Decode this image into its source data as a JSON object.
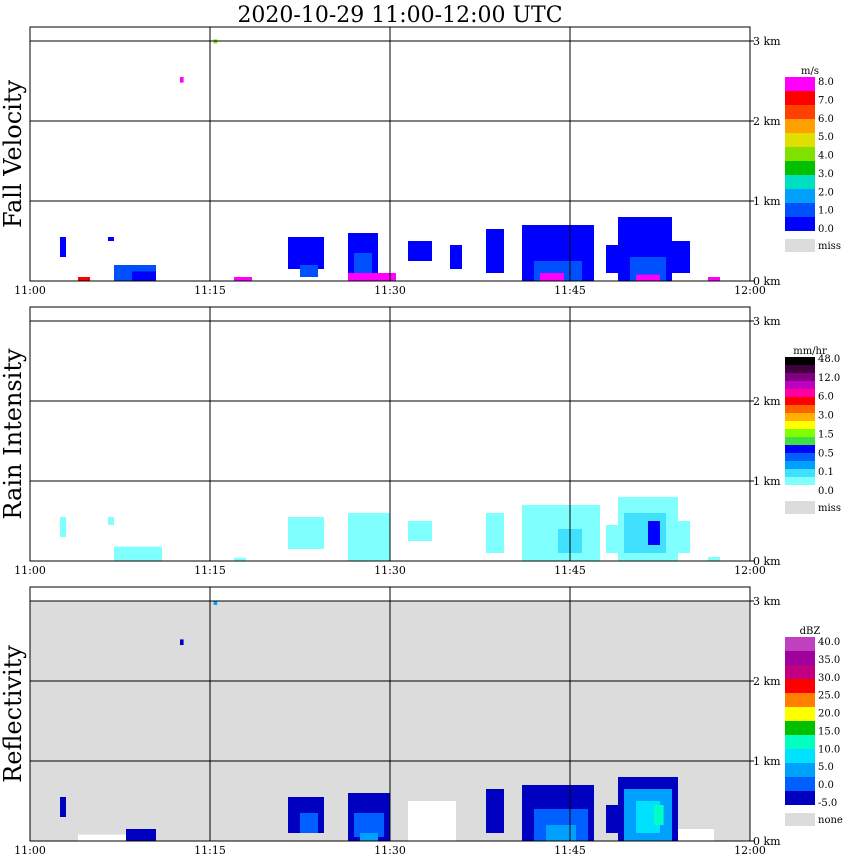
{
  "title": "2020-10-29   11:00-12:00 UTC",
  "colors": {
    "panel_bg_default": "#ffffff",
    "panel_bg_reflectivity": "#dcdcdc",
    "grid": "#000000",
    "miss": "#dcdcdc"
  },
  "chart_data": [
    {
      "type": "heatmap",
      "ylabel": "Fall Velocity",
      "x_ticks": [
        "11:00",
        "11:15",
        "11:30",
        "11:45",
        "12:00"
      ],
      "y_ticks": [
        "0 km",
        "1 km",
        "2 km",
        "3 km"
      ],
      "xlim_minutes": [
        0,
        60
      ],
      "ylim_km": [
        0,
        3
      ],
      "grid": true,
      "legend_position": "right",
      "colorbar": {
        "unit": "m/s",
        "colors": [
          "#0000ff",
          "#0050ff",
          "#00a0ff",
          "#00e0c0",
          "#00c000",
          "#80e000",
          "#e0e000",
          "#ffa000",
          "#ff4000",
          "#ff0000",
          "#ff00ff"
        ],
        "labels": [
          "0.0",
          "1.0",
          "2.0",
          "3.0",
          "4.0",
          "5.0",
          "6.0",
          "7.0",
          "8.0"
        ],
        "missing_label": "miss"
      },
      "echoes": [
        {
          "t0": 2.5,
          "t1": 3.0,
          "h0": 0.3,
          "h1": 0.55,
          "v": 0
        },
        {
          "t0": 4.0,
          "t1": 5.0,
          "h0": 0.0,
          "h1": 0.05,
          "v": 9
        },
        {
          "t0": 6.5,
          "t1": 7.0,
          "h0": 0.5,
          "h1": 0.55,
          "v": 0
        },
        {
          "t0": 7.0,
          "t1": 10.5,
          "h0": 0.0,
          "h1": 0.2,
          "v": 1
        },
        {
          "t0": 8.5,
          "t1": 10.5,
          "h0": 0.0,
          "h1": 0.12,
          "v": 0
        },
        {
          "t0": 12.5,
          "t1": 12.8,
          "h0": 2.48,
          "h1": 2.55,
          "v": 10
        },
        {
          "t0": 15.3,
          "t1": 15.6,
          "h0": 2.97,
          "h1": 3.02,
          "v": 5
        },
        {
          "t0": 17.0,
          "t1": 18.5,
          "h0": 0.0,
          "h1": 0.05,
          "v": 10
        },
        {
          "t0": 21.5,
          "t1": 24.5,
          "h0": 0.15,
          "h1": 0.55,
          "v": 0
        },
        {
          "t0": 22.5,
          "t1": 24.0,
          "h0": 0.05,
          "h1": 0.2,
          "v": 1
        },
        {
          "t0": 26.5,
          "t1": 29.0,
          "h0": 0.05,
          "h1": 0.6,
          "v": 0
        },
        {
          "t0": 26.5,
          "t1": 30.5,
          "h0": 0.0,
          "h1": 0.1,
          "v": 10
        },
        {
          "t0": 27.0,
          "t1": 28.5,
          "h0": 0.1,
          "h1": 0.35,
          "v": 1
        },
        {
          "t0": 31.5,
          "t1": 33.5,
          "h0": 0.25,
          "h1": 0.5,
          "v": 0
        },
        {
          "t0": 35.0,
          "t1": 36.0,
          "h0": 0.15,
          "h1": 0.45,
          "v": 0
        },
        {
          "t0": 38.0,
          "t1": 39.5,
          "h0": 0.1,
          "h1": 0.65,
          "v": 0
        },
        {
          "t0": 41.0,
          "t1": 47.0,
          "h0": 0.0,
          "h1": 0.7,
          "v": 0
        },
        {
          "t0": 42.0,
          "t1": 46.0,
          "h0": 0.0,
          "h1": 0.25,
          "v": 1
        },
        {
          "t0": 42.5,
          "t1": 44.5,
          "h0": 0.0,
          "h1": 0.1,
          "v": 10
        },
        {
          "t0": 48.0,
          "t1": 50.0,
          "h0": 0.1,
          "h1": 0.45,
          "v": 0
        },
        {
          "t0": 49.0,
          "t1": 53.5,
          "h0": 0.0,
          "h1": 0.8,
          "v": 0
        },
        {
          "t0": 50.0,
          "t1": 53.0,
          "h0": 0.0,
          "h1": 0.3,
          "v": 1
        },
        {
          "t0": 50.5,
          "t1": 52.5,
          "h0": 0.0,
          "h1": 0.08,
          "v": 10
        },
        {
          "t0": 53.5,
          "t1": 55.0,
          "h0": 0.1,
          "h1": 0.5,
          "v": 0
        },
        {
          "t0": 56.5,
          "t1": 57.5,
          "h0": 0.0,
          "h1": 0.05,
          "v": 10
        }
      ]
    },
    {
      "type": "heatmap",
      "ylabel": "Rain Intensity",
      "x_ticks": [
        "11:00",
        "11:15",
        "11:30",
        "11:45",
        "12:00"
      ],
      "y_ticks": [
        "0 km",
        "1 km",
        "2 km",
        "3 km"
      ],
      "xlim_minutes": [
        0,
        60
      ],
      "ylim_km": [
        0,
        3
      ],
      "grid": true,
      "legend_position": "right",
      "colorbar": {
        "unit": "mm/hr",
        "colors": [
          "#ffffff",
          "#80ffff",
          "#40e0ff",
          "#00a0ff",
          "#0060ff",
          "#0000ff",
          "#40e040",
          "#80ff00",
          "#ffff00",
          "#ffb000",
          "#ff6000",
          "#ff0000",
          "#ff00a0",
          "#c000c0",
          "#800080",
          "#400040",
          "#000000"
        ],
        "labels": [
          "0.0",
          "0.1",
          "0.5",
          "1.5",
          "3.0",
          "6.0",
          "12.0",
          "48.0"
        ],
        "missing_label": "miss"
      },
      "echoes": [
        {
          "t0": 2.5,
          "t1": 3.0,
          "h0": 0.3,
          "h1": 0.55,
          "v": 1
        },
        {
          "t0": 6.5,
          "t1": 7.0,
          "h0": 0.45,
          "h1": 0.55,
          "v": 1
        },
        {
          "t0": 7.0,
          "t1": 11.0,
          "h0": 0.0,
          "h1": 0.18,
          "v": 1
        },
        {
          "t0": 17.0,
          "t1": 18.0,
          "h0": 0.0,
          "h1": 0.04,
          "v": 1
        },
        {
          "t0": 21.5,
          "t1": 24.5,
          "h0": 0.15,
          "h1": 0.55,
          "v": 1
        },
        {
          "t0": 26.5,
          "t1": 30.0,
          "h0": 0.0,
          "h1": 0.6,
          "v": 1
        },
        {
          "t0": 31.5,
          "t1": 33.5,
          "h0": 0.25,
          "h1": 0.5,
          "v": 1
        },
        {
          "t0": 38.0,
          "t1": 39.5,
          "h0": 0.1,
          "h1": 0.6,
          "v": 1
        },
        {
          "t0": 41.0,
          "t1": 47.5,
          "h0": 0.0,
          "h1": 0.7,
          "v": 1
        },
        {
          "t0": 44.0,
          "t1": 46.0,
          "h0": 0.1,
          "h1": 0.4,
          "v": 2
        },
        {
          "t0": 48.0,
          "t1": 50.0,
          "h0": 0.1,
          "h1": 0.45,
          "v": 1
        },
        {
          "t0": 49.0,
          "t1": 54.0,
          "h0": 0.0,
          "h1": 0.8,
          "v": 1
        },
        {
          "t0": 49.5,
          "t1": 53.0,
          "h0": 0.1,
          "h1": 0.6,
          "v": 2
        },
        {
          "t0": 51.5,
          "t1": 52.5,
          "h0": 0.2,
          "h1": 0.5,
          "v": 5
        },
        {
          "t0": 53.5,
          "t1": 55.0,
          "h0": 0.1,
          "h1": 0.5,
          "v": 1
        },
        {
          "t0": 56.5,
          "t1": 57.5,
          "h0": 0.0,
          "h1": 0.05,
          "v": 1
        }
      ]
    },
    {
      "type": "heatmap",
      "ylabel": "Reflectivity",
      "x_ticks": [
        "11:00",
        "11:15",
        "11:30",
        "11:45",
        "12:00"
      ],
      "y_ticks": [
        "0 km",
        "1 km",
        "2 km",
        "3 km"
      ],
      "xlim_minutes": [
        0,
        60
      ],
      "ylim_km": [
        0,
        3
      ],
      "grid": true,
      "legend_position": "right",
      "colorbar": {
        "unit": "dBZ",
        "colors": [
          "#0000c0",
          "#0060ff",
          "#00a0ff",
          "#00e0ff",
          "#00ffc0",
          "#00c000",
          "#ffff00",
          "#ff8000",
          "#ff0000",
          "#c00080",
          "#a000a0",
          "#c040c0"
        ],
        "labels": [
          "-5.0",
          "0.0",
          "5.0",
          "10.0",
          "15.0",
          "20.0",
          "25.0",
          "30.0",
          "35.0",
          "40.0"
        ],
        "missing_label": "none"
      },
      "echoes": [
        {
          "t0": 0.0,
          "t1": 60.0,
          "h0": 0.0,
          "h1": 3.0,
          "v": -1
        },
        {
          "t0": 2.5,
          "t1": 3.0,
          "h0": 0.3,
          "h1": 0.55,
          "v": 0
        },
        {
          "t0": 4.0,
          "t1": 9.0,
          "h0": 0.0,
          "h1": 0.08,
          "v": -2
        },
        {
          "t0": 8.0,
          "t1": 10.5,
          "h0": 0.0,
          "h1": 0.15,
          "v": 0
        },
        {
          "t0": 12.5,
          "t1": 12.8,
          "h0": 2.45,
          "h1": 2.52,
          "v": 0
        },
        {
          "t0": 15.3,
          "t1": 15.6,
          "h0": 2.95,
          "h1": 3.0,
          "v": 2
        },
        {
          "t0": 21.5,
          "t1": 24.5,
          "h0": 0.1,
          "h1": 0.55,
          "v": 0
        },
        {
          "t0": 22.5,
          "t1": 24.0,
          "h0": 0.1,
          "h1": 0.35,
          "v": 1
        },
        {
          "t0": 26.5,
          "t1": 30.0,
          "h0": 0.0,
          "h1": 0.6,
          "v": 0
        },
        {
          "t0": 27.0,
          "t1": 29.5,
          "h0": 0.05,
          "h1": 0.35,
          "v": 1
        },
        {
          "t0": 27.5,
          "t1": 29.0,
          "h0": 0.0,
          "h1": 0.1,
          "v": 2
        },
        {
          "t0": 31.5,
          "t1": 35.5,
          "h0": 0.0,
          "h1": 0.5,
          "v": -2
        },
        {
          "t0": 38.0,
          "t1": 39.5,
          "h0": 0.1,
          "h1": 0.65,
          "v": 0
        },
        {
          "t0": 41.0,
          "t1": 47.0,
          "h0": 0.0,
          "h1": 0.7,
          "v": 0
        },
        {
          "t0": 42.0,
          "t1": 46.5,
          "h0": 0.0,
          "h1": 0.4,
          "v": 1
        },
        {
          "t0": 43.0,
          "t1": 45.5,
          "h0": 0.0,
          "h1": 0.2,
          "v": 2
        },
        {
          "t0": 48.0,
          "t1": 50.0,
          "h0": 0.1,
          "h1": 0.45,
          "v": 0
        },
        {
          "t0": 49.0,
          "t1": 54.0,
          "h0": 0.0,
          "h1": 0.8,
          "v": 0
        },
        {
          "t0": 49.5,
          "t1": 53.5,
          "h0": 0.0,
          "h1": 0.65,
          "v": 2
        },
        {
          "t0": 50.5,
          "t1": 52.5,
          "h0": 0.1,
          "h1": 0.5,
          "v": 3
        },
        {
          "t0": 52.0,
          "t1": 52.8,
          "h0": 0.2,
          "h1": 0.45,
          "v": 4
        },
        {
          "t0": 54.0,
          "t1": 57.0,
          "h0": 0.0,
          "h1": 0.15,
          "v": -2
        }
      ]
    }
  ]
}
